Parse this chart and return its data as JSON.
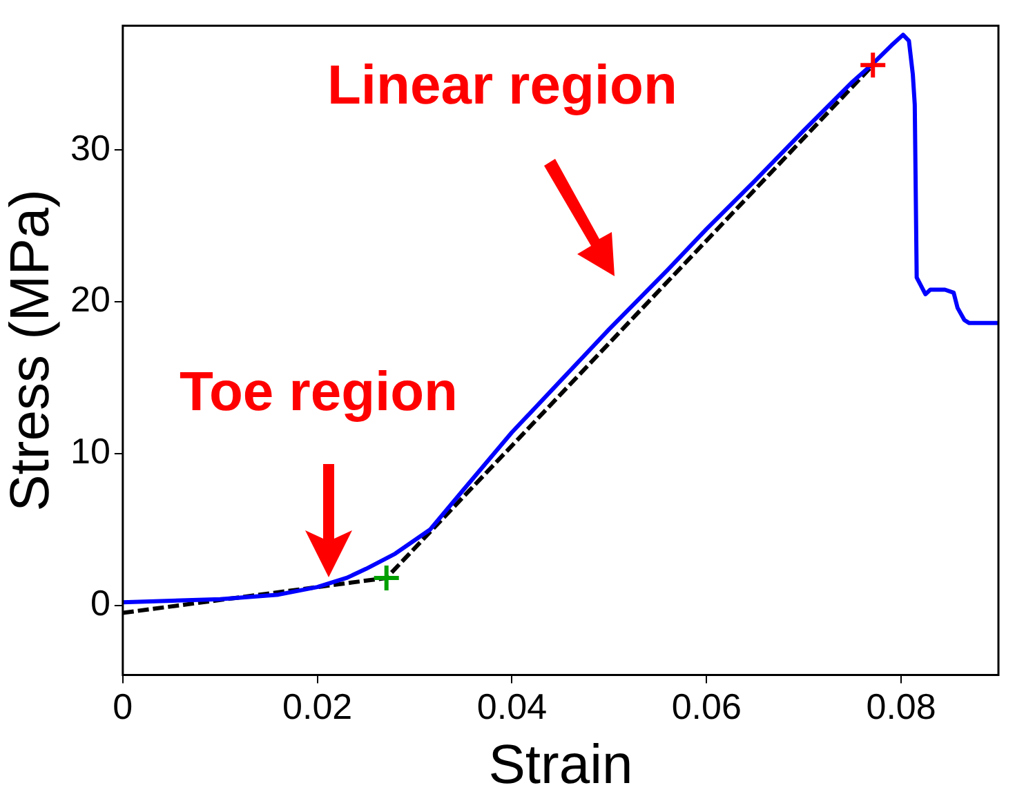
{
  "chart_data": {
    "type": "line",
    "xlabel": "Strain",
    "ylabel": "Stress (MPa)",
    "xlim": [
      0,
      0.09
    ],
    "ylim": [
      -4.6,
      38.2
    ],
    "xticks": [
      0,
      0.02,
      0.04,
      0.06,
      0.08
    ],
    "yticks": [
      0,
      10,
      20,
      30
    ],
    "grid": false,
    "legend": false,
    "marker": "none",
    "annotations": [
      "Linear region",
      "Toe region"
    ],
    "series": [
      {
        "color": "#0000ff",
        "line_style": "solid",
        "x": [
          0,
          0.005,
          0.01,
          0.016,
          0.02,
          0.023,
          0.025,
          0.028,
          0.0316,
          0.035,
          0.04,
          0.045,
          0.05,
          0.056,
          0.06,
          0.065,
          0.07,
          0.075,
          0.0771,
          0.079,
          0.0802,
          0.0808,
          0.0812,
          0.0814,
          0.0816,
          0.0825,
          0.083,
          0.0845,
          0.0854,
          0.0858,
          0.0865,
          0.087,
          0.09
        ],
        "values": [
          0.2,
          0.3,
          0.4,
          0.7,
          1.2,
          1.8,
          2.4,
          3.4,
          5.0,
          7.6,
          11.4,
          14.8,
          18.2,
          22.1,
          24.8,
          28.0,
          31.3,
          34.5,
          35.7,
          36.9,
          37.6,
          37.2,
          35.0,
          33.0,
          21.6,
          20.5,
          20.8,
          20.8,
          20.6,
          19.6,
          18.8,
          18.6,
          18.6
        ]
      },
      {
        "color": "#000000",
        "line_style": "dashed",
        "x": [
          0,
          0.0271,
          0.0771
        ],
        "values": [
          -0.5,
          1.8,
          35.6
        ]
      },
      {
        "type": "scatter",
        "color": "#00a000",
        "marker": "cross",
        "x": [
          0.0271
        ],
        "values": [
          1.8
        ]
      },
      {
        "type": "scatter",
        "color": "#ff0000",
        "marker": "cross",
        "x": [
          0.0771
        ],
        "values": [
          35.6
        ]
      }
    ]
  }
}
